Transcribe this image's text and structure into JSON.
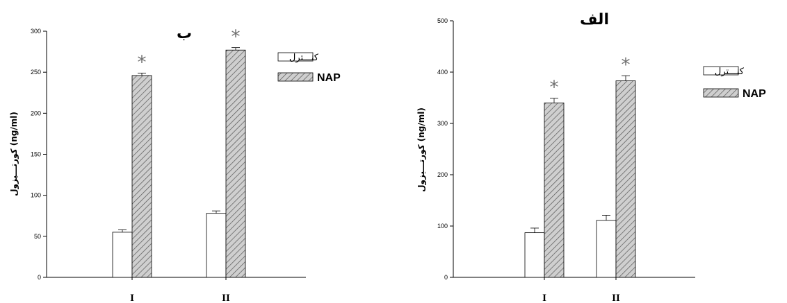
{
  "chart_data": [
    {
      "type": "bar",
      "title": "ب",
      "ylabel": "کورتـــیزول (ng/ml)",
      "xlabel": "",
      "categories": [
        "I",
        "II"
      ],
      "ylim": [
        0,
        300
      ],
      "yticks": [
        0,
        50,
        100,
        150,
        200,
        250,
        300
      ],
      "series": [
        {
          "name": "کنـــترل",
          "values": [
            55,
            78
          ],
          "errors": [
            3,
            3
          ],
          "fill": "#ffffff"
        },
        {
          "name": "NAP",
          "values": [
            246,
            277
          ],
          "errors": [
            3,
            3
          ],
          "fill": "#cfcfcf"
        }
      ],
      "significance_marker": "*",
      "significant_series": "NAP",
      "legend": "top-right",
      "grid": false
    },
    {
      "type": "bar",
      "title": "الف",
      "ylabel": "کورتـــیزول (ng/ml)",
      "xlabel": "",
      "categories": [
        "I",
        "II"
      ],
      "ylim": [
        0,
        500
      ],
      "yticks": [
        0,
        100,
        200,
        300,
        400,
        500
      ],
      "series": [
        {
          "name": "کنـــترل",
          "values": [
            87,
            111
          ],
          "errors": [
            9,
            10
          ],
          "fill": "#ffffff"
        },
        {
          "name": "NAP",
          "values": [
            340,
            383
          ],
          "errors": [
            9,
            10
          ],
          "fill": "#cfcfcf"
        }
      ],
      "significance_marker": "*",
      "significant_series": "NAP",
      "legend": "top-right",
      "grid": false
    }
  ],
  "colors": {
    "axis": "#000000",
    "hatch": "#555555",
    "star": "#6e6e6e"
  }
}
